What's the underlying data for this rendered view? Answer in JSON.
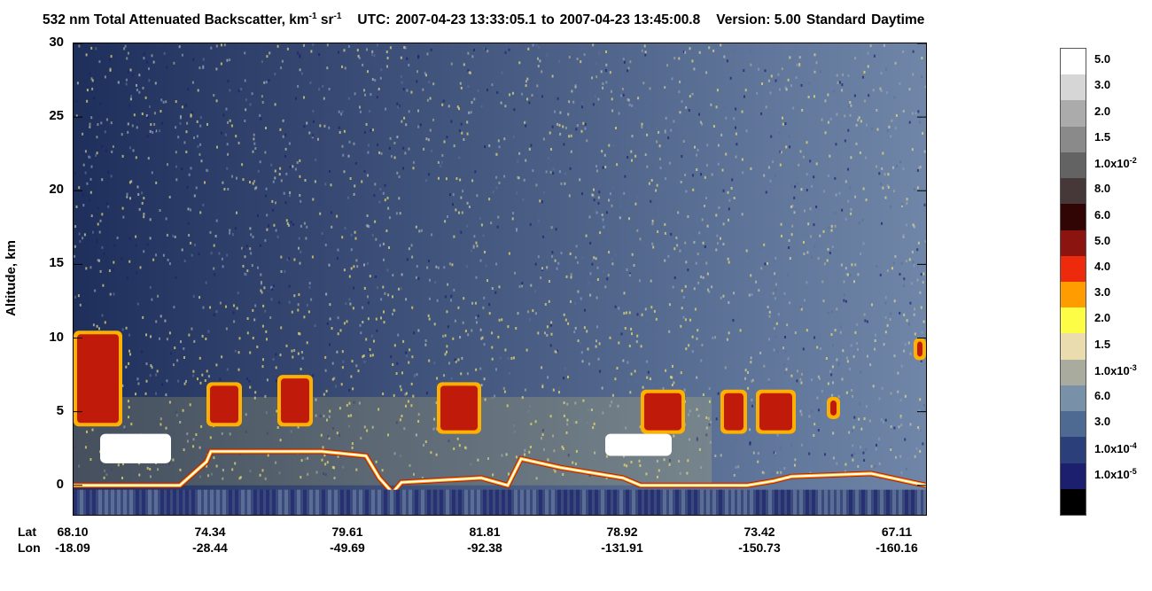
{
  "title": {
    "product": "532 nm Total Attenuated Backscatter, km",
    "unit_exp1": "-1",
    "unit_sr": " sr",
    "unit_exp2": "-1",
    "utc_label": "UTC:",
    "start": "2007-04-23 13:33:05.1",
    "to_word": "to",
    "end": "2007-04-23 13:45:00.8",
    "version": "Version: 5.00",
    "mode": "Standard",
    "daytime": "Daytime"
  },
  "colors": {
    "background_high": "#1f2f5c",
    "background_low": "#6f86a8",
    "surface": "#ffffff",
    "aerosol": "#f2e46a",
    "cloud_core": "#c01a0a",
    "cloud_edge": "#ffb000",
    "ground": "#3a4a7a"
  },
  "chart_data": {
    "type": "heatmap",
    "title": "532 nm Total Attenuated Backscatter, km-1 sr-1",
    "ylabel": "Altitude, km",
    "ylim": [
      -2,
      30
    ],
    "yticks": [
      "30",
      "25",
      "20",
      "15",
      "10",
      "5",
      "0"
    ],
    "x_row_labels": {
      "lat": "Lat",
      "lon": "Lon"
    },
    "xticks": [
      {
        "lat": "68.10",
        "lon": "-18.09"
      },
      {
        "lat": "74.34",
        "lon": "-28.44"
      },
      {
        "lat": "79.61",
        "lon": "-49.69"
      },
      {
        "lat": "81.81",
        "lon": "-92.38"
      },
      {
        "lat": "78.92",
        "lon": "-131.91"
      },
      {
        "lat": "73.42",
        "lon": "-150.73"
      },
      {
        "lat": "67.11",
        "lon": "-160.16"
      }
    ],
    "colorbar": [
      {
        "label": "5.0",
        "exp": "",
        "color": "#ffffff"
      },
      {
        "label": "3.0",
        "exp": "",
        "color": "#d6d6d6"
      },
      {
        "label": "2.0",
        "exp": "",
        "color": "#ababab"
      },
      {
        "label": "1.5",
        "exp": "",
        "color": "#8a8a8a"
      },
      {
        "label": "1.0x10",
        "exp": "-2",
        "color": "#636363"
      },
      {
        "label": "8.0",
        "exp": "",
        "color": "#463838"
      },
      {
        "label": "6.0",
        "exp": "",
        "color": "#320505"
      },
      {
        "label": "5.0",
        "exp": "",
        "color": "#8b1410"
      },
      {
        "label": "4.0",
        "exp": "",
        "color": "#ee2a0c"
      },
      {
        "label": "3.0",
        "exp": "",
        "color": "#ff9c00"
      },
      {
        "label": "2.0",
        "exp": "",
        "color": "#fdfd46"
      },
      {
        "label": "1.5",
        "exp": "",
        "color": "#eadcae"
      },
      {
        "label": "1.0x10",
        "exp": "-3",
        "color": "#a9ab9e"
      },
      {
        "label": "6.0",
        "exp": "",
        "color": "#7890a8"
      },
      {
        "label": "3.0",
        "exp": "",
        "color": "#4e6a93"
      },
      {
        "label": "1.0x10",
        "exp": "-4",
        "color": "#2b3f7b"
      },
      {
        "label": "1.0x10",
        "exp": "-5",
        "color": "#1b1f6d"
      },
      {
        "label": "",
        "exp": "",
        "color": "#000000"
      }
    ]
  }
}
